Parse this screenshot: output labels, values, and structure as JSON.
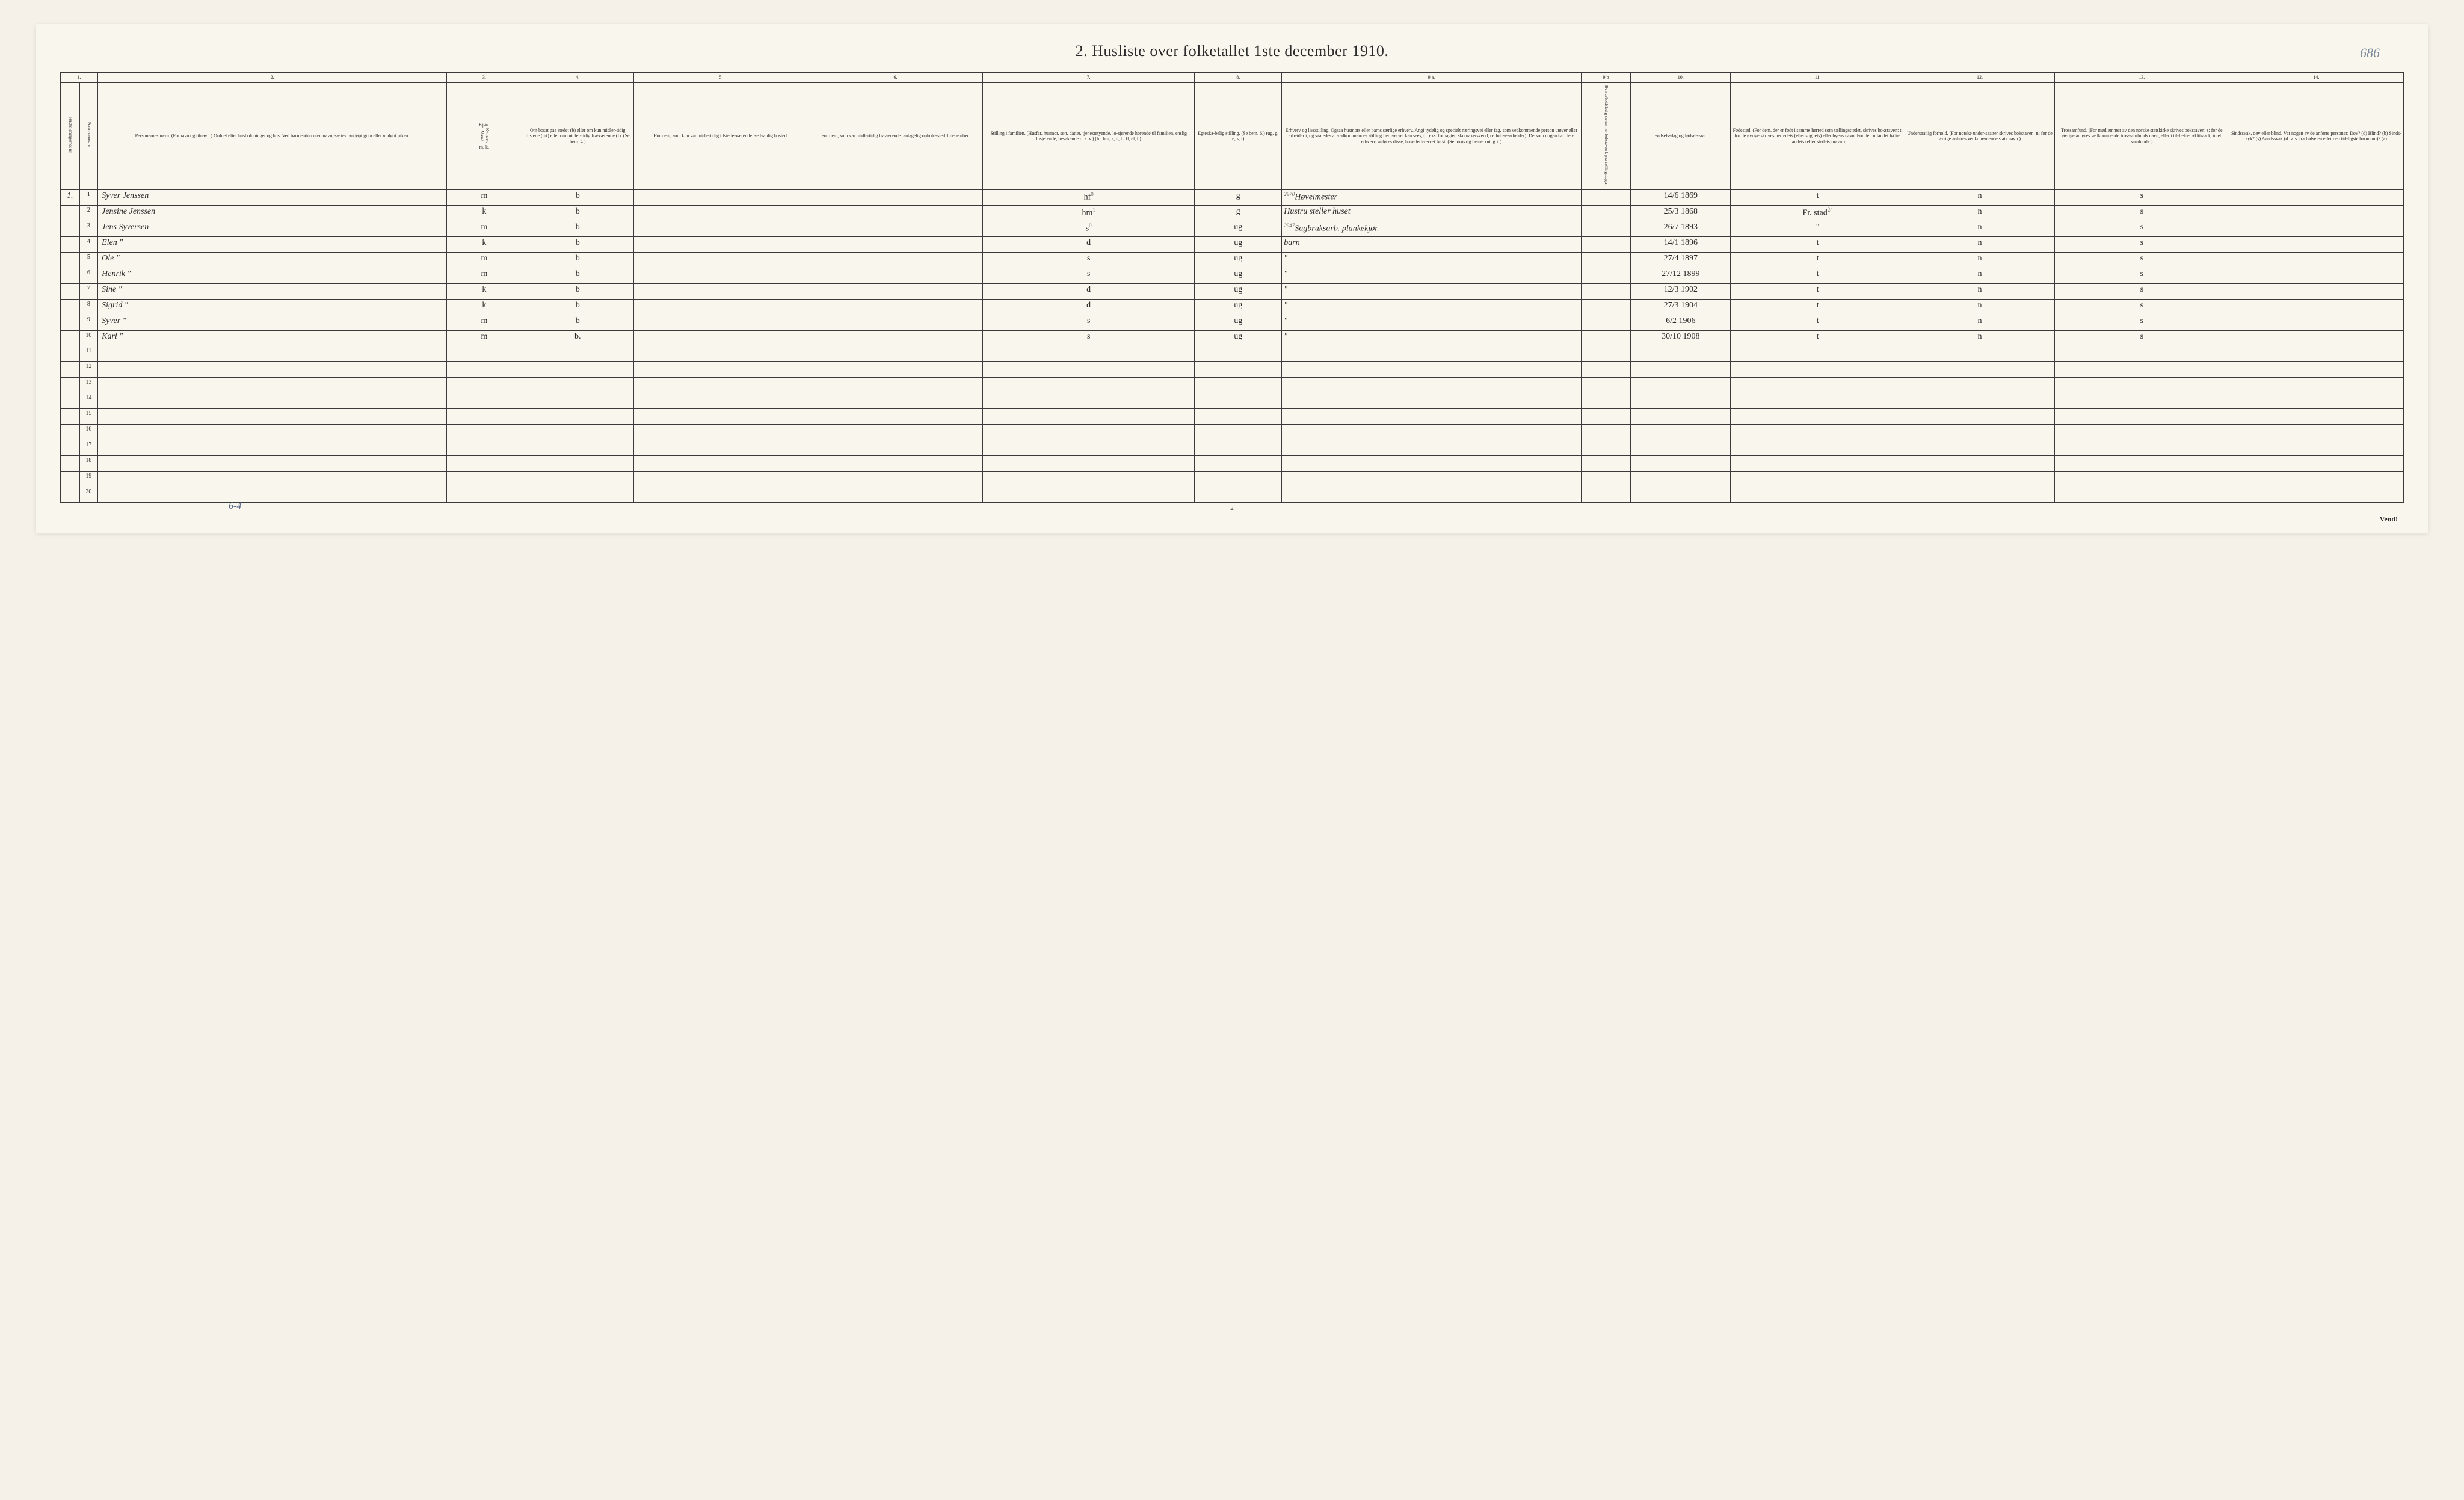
{
  "title": "2.  Husliste over folketallet 1ste december 1910.",
  "page_marker": "686",
  "footer_note": "6-4",
  "page_num_bottom": "2",
  "vend": "Vend!",
  "col_nums": {
    "c1": "1.",
    "c2": "2.",
    "c3": "3.",
    "c4": "4.",
    "c5": "5.",
    "c6": "6.",
    "c7": "7.",
    "c8": "8.",
    "c9a": "9 a.",
    "c9b": "9 b",
    "c10": "10.",
    "c11": "11.",
    "c12": "12.",
    "c13": "13.",
    "c14": "14."
  },
  "headers": {
    "h1a": "Husholdningernes nr.",
    "h1b": "Personernes nr.",
    "h2": "Personernes navn.\n(Fornavn og tilnavn.)\nOrdnet efter husholdninger og hus.\nVed barn endnu uten navn, sættes: «udøpt gut» eller «udøpt pike».",
    "h3": "Kjøn.",
    "h3a": "Mænd.",
    "h3b": "Kvinder.",
    "h3c": "m.  k.",
    "h4": "Om bosat paa stedet (b) eller om kun midler-tidig tilstede (mt) eller om midler-tidig fra-værende (f). (Se bem. 4.)",
    "h5": "For dem, som kun var midlertidig tilstede-værende:\nsedvanlig bosted.",
    "h6": "For dem, som var midlertidig fraværende:\nantagelig opholdssted 1 december.",
    "h7": "Stilling i familien.\n(Husfar, husmor, søn, datter, tjenestetyende, lo-sjerende hørende til familien, enslig losjerende, besøkende o. s. v.)\n(hf, hm, s, d, tj, fl, el, b)",
    "h8": "Egteska-belig stilling.\n(Se bem. 6.)\n(ug, g, e, s, f)",
    "h9a": "Erhverv og livsstilling.\nOgsaa husmors eller barns særlige erhverv.\nAngi tydelig og specielt næringsvei eller fag, som vedkommende person utøver eller arbeider i, og saaledes at vedkommendes stilling i erhvervet kan sees, (f. eks. forpagter, skomakersvend, cellulose-arbeider). Dersom nogen har flere erhverv, anføres disse, hovederhvervet først.\n(Se forøvrig bemerkning 7.)",
    "h9b": "Hvis arbeidsledig sættes her bokstaven l.\npaa tællingsdagen",
    "h10": "Fødsels-dag og fødsels-aar.",
    "h11": "Fødested.\n(For dem, der er født i samme herred som tællingsstedet, skrives bokstaven: t; for de øvrige skrives herredets (eller sognets) eller byens navn. For de i utlandet fødte: landets (eller stedets) navn.)",
    "h12": "Undersaatlig forhold.\n(For norske under-saatter skrives bokstaven: n; for de øvrige anføres vedkom-mende stats navn.)",
    "h13": "Trossamfund.\n(For medlemmer av den norske statskirke skrives bokstaven: s; for de øvrige anføres vedkommende tros-samfunds navn, eller i til-fælde: «Uttraadt, intet samfund».)",
    "h14": "Sindssvak, døv eller blind.\nVar nogen av de anførte personer:\nDøv?     (d)\nBlind?    (b)\nSinds-syk?  (s)\nAandssvak (d. v. s. fra fødselen eller den tid-ligste barndom)?  (a)"
  },
  "rows": [
    {
      "hh": "1.",
      "num": "1",
      "name": "Syver Jenssen",
      "sex": "m",
      "res": "b",
      "pos": "hf",
      "pos_note": "0",
      "marital": "g",
      "occ": "Høvelmester",
      "occ_note": "2970",
      "birth": "14/6 1869",
      "birthplace": "t",
      "nat": "n",
      "faith": "s"
    },
    {
      "hh": "",
      "num": "2",
      "name": "Jensine Jenssen",
      "sex": "k",
      "res": "b",
      "pos": "hm",
      "pos_note": "1",
      "marital": "g",
      "occ": "Hustru steller huset",
      "occ_note": "",
      "birth": "25/3 1868",
      "birthplace": "Fr. stad",
      "birthplace_note": "24",
      "nat": "n",
      "faith": "s"
    },
    {
      "hh": "",
      "num": "3",
      "name": "Jens Syversen",
      "sex": "m",
      "res": "b",
      "pos": "s",
      "pos_note": "0",
      "marital": "ug",
      "occ": "Sagbruksarb. plankekjør.",
      "occ_note": "2947",
      "birth": "26/7 1893",
      "birthplace": "\"",
      "nat": "n",
      "faith": "s"
    },
    {
      "hh": "",
      "num": "4",
      "name": "Elen      \"",
      "sex": "k",
      "res": "b",
      "pos": "d",
      "pos_note": "",
      "marital": "ug",
      "occ": "barn",
      "occ_note": "",
      "birth": "14/1 1896",
      "birthplace": "t",
      "nat": "n",
      "faith": "s"
    },
    {
      "hh": "",
      "num": "5",
      "name": "Ole       \"",
      "sex": "m",
      "res": "b",
      "pos": "s",
      "pos_note": "",
      "marital": "ug",
      "occ": "\"",
      "occ_note": "",
      "birth": "27/4 1897",
      "birthplace": "t",
      "nat": "n",
      "faith": "s"
    },
    {
      "hh": "",
      "num": "6",
      "name": "Henrik   \"",
      "sex": "m",
      "res": "b",
      "pos": "s",
      "pos_note": "",
      "marital": "ug",
      "occ": "\"",
      "occ_note": "",
      "birth": "27/12 1899",
      "birthplace": "t",
      "nat": "n",
      "faith": "s"
    },
    {
      "hh": "",
      "num": "7",
      "name": "Sine      \"",
      "sex": "k",
      "res": "b",
      "pos": "d",
      "pos_note": "",
      "marital": "ug",
      "occ": "\"",
      "occ_note": "",
      "birth": "12/3 1902",
      "birthplace": "t",
      "nat": "n",
      "faith": "s"
    },
    {
      "hh": "",
      "num": "8",
      "name": "Sigrid    \"",
      "sex": "k",
      "res": "b",
      "pos": "d",
      "pos_note": "",
      "marital": "ug",
      "occ": "\"",
      "occ_note": "",
      "birth": "27/3 1904",
      "birthplace": "t",
      "nat": "n",
      "faith": "s"
    },
    {
      "hh": "",
      "num": "9",
      "name": "Syver    \"",
      "sex": "m",
      "res": "b",
      "pos": "s",
      "pos_note": "",
      "marital": "ug",
      "occ": "\"",
      "occ_note": "",
      "birth": "6/2 1906",
      "birthplace": "t",
      "nat": "n",
      "faith": "s"
    },
    {
      "hh": "",
      "num": "10",
      "name": "Karl      \"",
      "sex": "m",
      "res": "b.",
      "pos": "s",
      "pos_note": "",
      "marital": "ug",
      "occ": "\"",
      "occ_note": "",
      "birth": "30/10 1908",
      "birthplace": "t",
      "nat": "n",
      "faith": "s"
    },
    {
      "hh": "",
      "num": "11",
      "name": "",
      "sex": "",
      "res": "",
      "pos": "",
      "pos_note": "",
      "marital": "",
      "occ": "",
      "occ_note": "",
      "birth": "",
      "birthplace": "",
      "nat": "",
      "faith": ""
    },
    {
      "hh": "",
      "num": "12",
      "name": "",
      "sex": "",
      "res": "",
      "pos": "",
      "pos_note": "",
      "marital": "",
      "occ": "",
      "occ_note": "",
      "birth": "",
      "birthplace": "",
      "nat": "",
      "faith": ""
    },
    {
      "hh": "",
      "num": "13",
      "name": "",
      "sex": "",
      "res": "",
      "pos": "",
      "pos_note": "",
      "marital": "",
      "occ": "",
      "occ_note": "",
      "birth": "",
      "birthplace": "",
      "nat": "",
      "faith": ""
    },
    {
      "hh": "",
      "num": "14",
      "name": "",
      "sex": "",
      "res": "",
      "pos": "",
      "pos_note": "",
      "marital": "",
      "occ": "",
      "occ_note": "",
      "birth": "",
      "birthplace": "",
      "nat": "",
      "faith": ""
    },
    {
      "hh": "",
      "num": "15",
      "name": "",
      "sex": "",
      "res": "",
      "pos": "",
      "pos_note": "",
      "marital": "",
      "occ": "",
      "occ_note": "",
      "birth": "",
      "birthplace": "",
      "nat": "",
      "faith": ""
    },
    {
      "hh": "",
      "num": "16",
      "name": "",
      "sex": "",
      "res": "",
      "pos": "",
      "pos_note": "",
      "marital": "",
      "occ": "",
      "occ_note": "",
      "birth": "",
      "birthplace": "",
      "nat": "",
      "faith": ""
    },
    {
      "hh": "",
      "num": "17",
      "name": "",
      "sex": "",
      "res": "",
      "pos": "",
      "pos_note": "",
      "marital": "",
      "occ": "",
      "occ_note": "",
      "birth": "",
      "birthplace": "",
      "nat": "",
      "faith": ""
    },
    {
      "hh": "",
      "num": "18",
      "name": "",
      "sex": "",
      "res": "",
      "pos": "",
      "pos_note": "",
      "marital": "",
      "occ": "",
      "occ_note": "",
      "birth": "",
      "birthplace": "",
      "nat": "",
      "faith": ""
    },
    {
      "hh": "",
      "num": "19",
      "name": "",
      "sex": "",
      "res": "",
      "pos": "",
      "pos_note": "",
      "marital": "",
      "occ": "",
      "occ_note": "",
      "birth": "",
      "birthplace": "",
      "nat": "",
      "faith": ""
    },
    {
      "hh": "",
      "num": "20",
      "name": "",
      "sex": "",
      "res": "",
      "pos": "",
      "pos_note": "",
      "marital": "",
      "occ": "",
      "occ_note": "",
      "birth": "",
      "birthplace": "",
      "nat": "",
      "faith": ""
    }
  ]
}
